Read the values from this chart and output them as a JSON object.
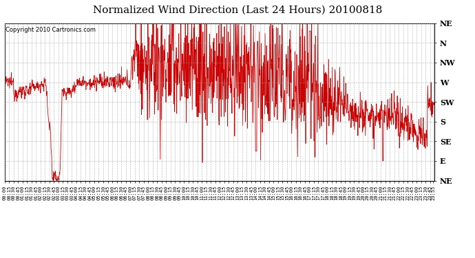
{
  "title": "Normalized Wind Direction (Last 24 Hours) 20100818",
  "copyright_text": "Copyright 2010 Cartronics.com",
  "y_labels": [
    "NE",
    "N",
    "NW",
    "W",
    "SW",
    "S",
    "SE",
    "E",
    "NE"
  ],
  "y_tick_positions": [
    8,
    7,
    6,
    5,
    4,
    3,
    2,
    1,
    0
  ],
  "line_color": "#cc0000",
  "background_color": "#ffffff",
  "grid_color": "#aaaaaa",
  "title_fontsize": 11,
  "y_min": 0,
  "y_max": 8
}
